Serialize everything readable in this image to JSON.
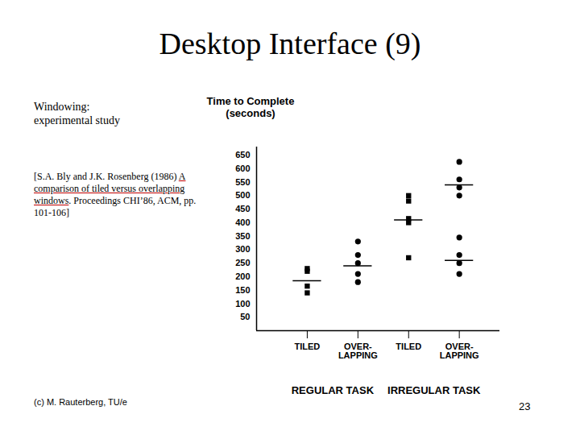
{
  "slide": {
    "title": "Desktop Interface (9)",
    "text": "Windowing:\nexperimental study",
    "citation": {
      "before": "[S.A. Bly and J.K. Rosenberg (1986) ",
      "link": "A comparison of tiled versus overlapping windows",
      "after": ". Proceedings CHI’86, ACM, pp. 101-106]"
    },
    "footer": "(c) M. Rauterberg, TU/e",
    "page": 23
  },
  "chart_data": {
    "type": "scatter",
    "y_label": "Time to Complete\n(seconds)",
    "categories": [
      "TILED",
      "OVER-\nLAPPING",
      "TILED",
      "OVER-\nLAPPING"
    ],
    "groups": [
      {
        "label": "REGULAR TASK",
        "categories": [
          0,
          1
        ]
      },
      {
        "label": "IRREGULAR TASK",
        "categories": [
          2,
          3
        ]
      }
    ],
    "series": [
      {
        "marker": "square",
        "color": "#000000",
        "values": [
          [
            230,
            220,
            165,
            140
          ],
          null,
          [
            500,
            480,
            415,
            400,
            270
          ],
          null
        ],
        "means": [
          [
            185
          ],
          null,
          [
            410
          ],
          null
        ]
      },
      {
        "marker": "circle",
        "color": "#000000",
        "values": [
          null,
          [
            330,
            280,
            250,
            210,
            180
          ],
          null,
          [
            625,
            560,
            530,
            500,
            345,
            280,
            250,
            210
          ]
        ],
        "means": [
          null,
          [
            240
          ],
          null,
          [
            540,
            260
          ]
        ]
      }
    ],
    "ylim": [
      0,
      680
    ],
    "yticks": [
      50,
      100,
      150,
      200,
      250,
      300,
      350,
      400,
      450,
      500,
      550,
      600,
      650
    ],
    "grid": false
  }
}
